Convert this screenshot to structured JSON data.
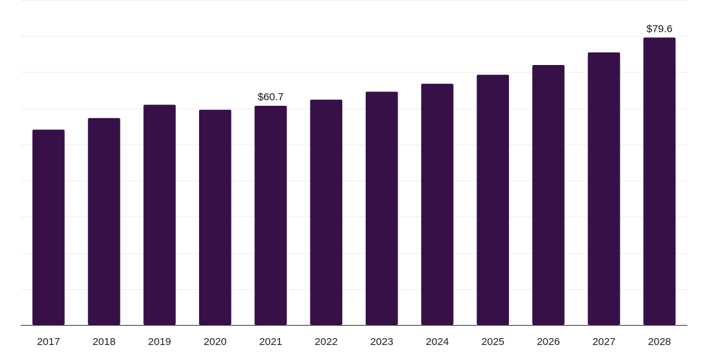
{
  "chart_data": {
    "type": "bar",
    "categories": [
      "2017",
      "2018",
      "2019",
      "2020",
      "2021",
      "2022",
      "2023",
      "2024",
      "2025",
      "2026",
      "2027",
      "2028"
    ],
    "values": [
      54.1,
      57.3,
      61.0,
      59.6,
      60.7,
      62.4,
      64.6,
      66.8,
      69.3,
      72.0,
      75.5,
      79.6
    ],
    "data_labels": [
      "",
      "",
      "",
      "",
      "$60.7",
      "",
      "",
      "",
      "",
      "",
      "",
      "$79.6"
    ],
    "ylim": [
      0,
      90
    ],
    "gridline_step": 10,
    "grid": true,
    "bar_color": "#371047",
    "grid_color": "#eeeeee",
    "axis_color": "#333333"
  }
}
